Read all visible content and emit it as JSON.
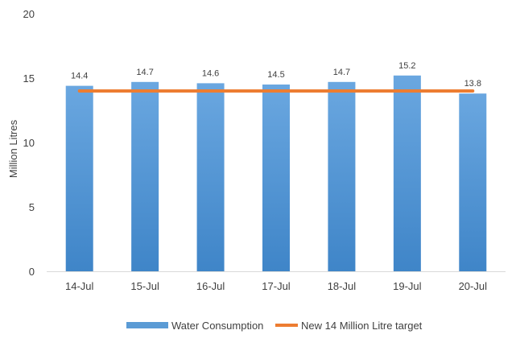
{
  "chart_data": {
    "type": "bar",
    "title": "",
    "xlabel": "",
    "ylabel": "Million Litres",
    "ylim": [
      0,
      20
    ],
    "yticks": [
      0,
      5,
      10,
      15,
      20
    ],
    "categories": [
      "14-Jul",
      "15-Jul",
      "16-Jul",
      "17-Jul",
      "18-Jul",
      "19-Jul",
      "20-Jul"
    ],
    "series": [
      {
        "name": "Water Consumption",
        "type": "bar",
        "values": [
          14.4,
          14.7,
          14.6,
          14.5,
          14.7,
          15.2,
          13.8
        ],
        "data_labels": [
          "14.4",
          "14.7",
          "14.6",
          "14.5",
          "14.7",
          "15.2",
          "13.8"
        ],
        "color": "#5b9bd5"
      },
      {
        "name": "New 14 Million Litre target",
        "type": "line",
        "values": [
          14,
          14,
          14,
          14,
          14,
          14,
          14
        ],
        "color": "#ed7d31"
      }
    ],
    "grid": false,
    "legend": "bottom"
  }
}
